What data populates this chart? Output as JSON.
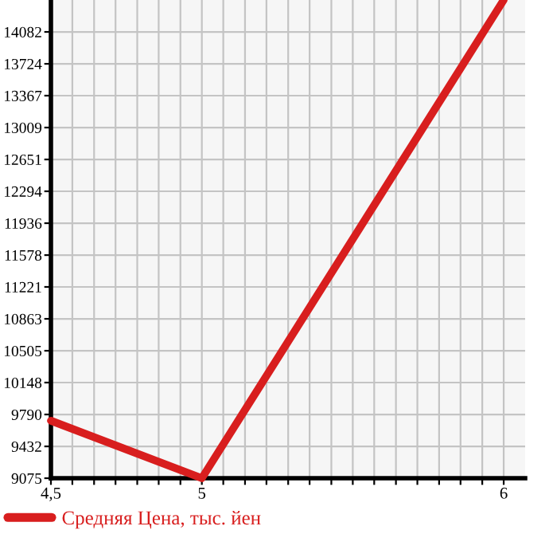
{
  "chart_data": {
    "type": "line",
    "x": [
      4.5,
      5,
      6
    ],
    "series": [
      {
        "name": "Средняя Цена, тыс. йен",
        "color": "#d81e1e",
        "values": [
          9720,
          9075,
          14440
        ]
      }
    ],
    "xlim": [
      4.5,
      6.071
    ],
    "xticks": [
      {
        "value": 4.5,
        "label": "4,5"
      },
      {
        "value": 4.571,
        "label": null
      },
      {
        "value": 4.643,
        "label": null
      },
      {
        "value": 4.714,
        "label": null
      },
      {
        "value": 4.786,
        "label": null
      },
      {
        "value": 4.857,
        "label": null
      },
      {
        "value": 4.929,
        "label": null
      },
      5,
      {
        "value": 5.071,
        "label": null
      },
      {
        "value": 5.143,
        "label": null
      },
      {
        "value": 5.214,
        "label": null
      },
      {
        "value": 5.286,
        "label": null
      },
      {
        "value": 5.357,
        "label": null
      },
      {
        "value": 5.429,
        "label": null
      },
      {
        "value": 5.5,
        "label": null
      },
      {
        "value": 5.571,
        "label": null
      },
      {
        "value": 5.643,
        "label": null
      },
      {
        "value": 5.714,
        "label": null
      },
      {
        "value": 5.786,
        "label": null
      },
      {
        "value": 5.857,
        "label": null
      },
      {
        "value": 5.929,
        "label": null
      },
      6
    ],
    "ylim": [
      9075,
      14440
    ],
    "yticks": [
      9075,
      9432,
      9790,
      10148,
      10505,
      10863,
      11221,
      11578,
      11936,
      12294,
      12651,
      13009,
      13367,
      13724,
      14082
    ],
    "grid": true,
    "legend": "bottom",
    "marker": "none",
    "line_style": "solid"
  }
}
